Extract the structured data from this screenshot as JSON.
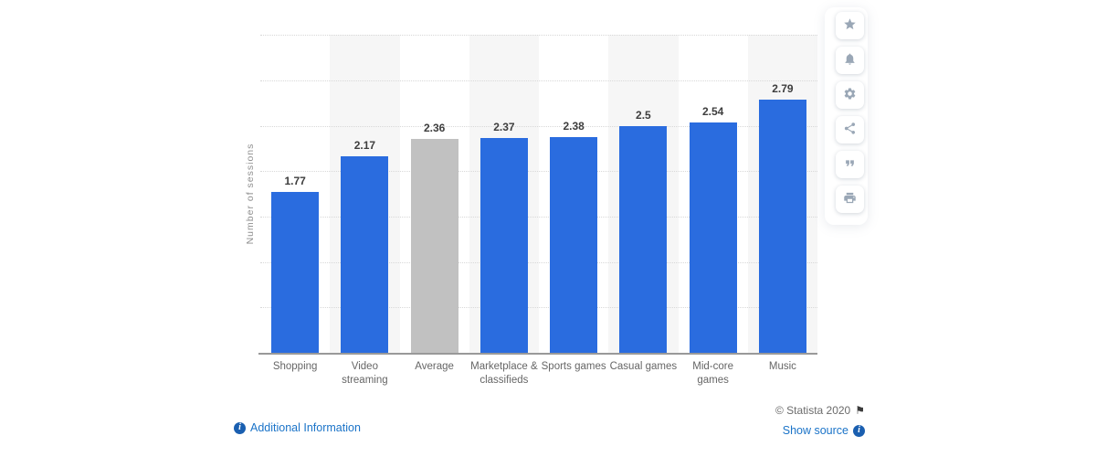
{
  "chart_data": {
    "type": "bar",
    "categories": [
      "Shopping",
      "Video streaming",
      "Average",
      "Marketplace & classifieds",
      "Sports games",
      "Casual games",
      "Mid-core games",
      "Music"
    ],
    "category_lines": [
      [
        "Shopping"
      ],
      [
        "Video",
        "streaming"
      ],
      [
        "Average"
      ],
      [
        "Marketplace &",
        "classifieds"
      ],
      [
        "Sports games"
      ],
      [
        "Casual games"
      ],
      [
        "Mid-core",
        "games"
      ],
      [
        "Music"
      ]
    ],
    "values": [
      1.77,
      2.17,
      2.36,
      2.37,
      2.38,
      2.5,
      2.54,
      2.79
    ],
    "value_labels": [
      "1.77",
      "2.17",
      "2.36",
      "2.37",
      "2.38",
      "2.5",
      "2.54",
      "2.79"
    ],
    "title": "",
    "xlabel": "",
    "ylabel": "Number of sessions",
    "ylim": [
      0,
      3.5
    ],
    "gridline_step": 0.5,
    "grid": "horizontal-dotted",
    "legend": "none",
    "highlight_category": "Average",
    "bar_color": "#2a6cdf",
    "highlight_color": "#c1c1c1",
    "band_color": "#f6f6f6"
  },
  "toolbar": {
    "buttons": [
      {
        "name": "favorite",
        "icon": "star-icon"
      },
      {
        "name": "notifications",
        "icon": "bell-icon"
      },
      {
        "name": "settings",
        "icon": "gear-icon"
      },
      {
        "name": "share",
        "icon": "share-icon"
      },
      {
        "name": "cite",
        "icon": "quote-icon"
      },
      {
        "name": "print",
        "icon": "printer-icon"
      }
    ]
  },
  "footer": {
    "additional_info_label": "Additional Information",
    "show_source_label": "Show source",
    "copyright": "© Statista 2020",
    "flag_icon": "flag-icon",
    "info_icon_glyph": "i"
  },
  "colors": {
    "bar_blue": "#2a6cdf",
    "bar_gray": "#c1c1c1",
    "link_blue": "#1a73c8",
    "axis_gray": "#999999",
    "gridline_gray": "#d8d8d8",
    "toolbar_icon_gray": "#9aa7b6"
  }
}
